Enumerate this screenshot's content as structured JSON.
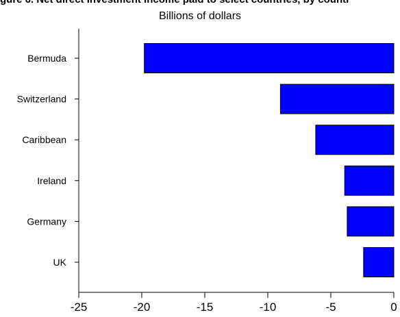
{
  "header": {
    "title_fragment": "gure 6. Net direct investment income paid to select countries, by countr",
    "subtitle": "Billions of dollars"
  },
  "chart_data": {
    "type": "bar",
    "orientation": "horizontal",
    "categories": [
      "Bermuda",
      "Switzerland",
      "Caribbean",
      "Ireland",
      "Germany",
      "UK"
    ],
    "values": [
      -19.8,
      -9.0,
      -6.2,
      -3.9,
      -3.7,
      -2.4
    ],
    "title": "",
    "subtitle": "Billions of dollars",
    "xlabel": "",
    "ylabel": "",
    "xlim": [
      -25,
      0
    ],
    "xticks": [
      -25,
      -20,
      -15,
      -10,
      -5,
      0
    ],
    "grid": false,
    "legend": "none",
    "bar_color": "#0000FF",
    "bar_edge_color": "#000000"
  }
}
